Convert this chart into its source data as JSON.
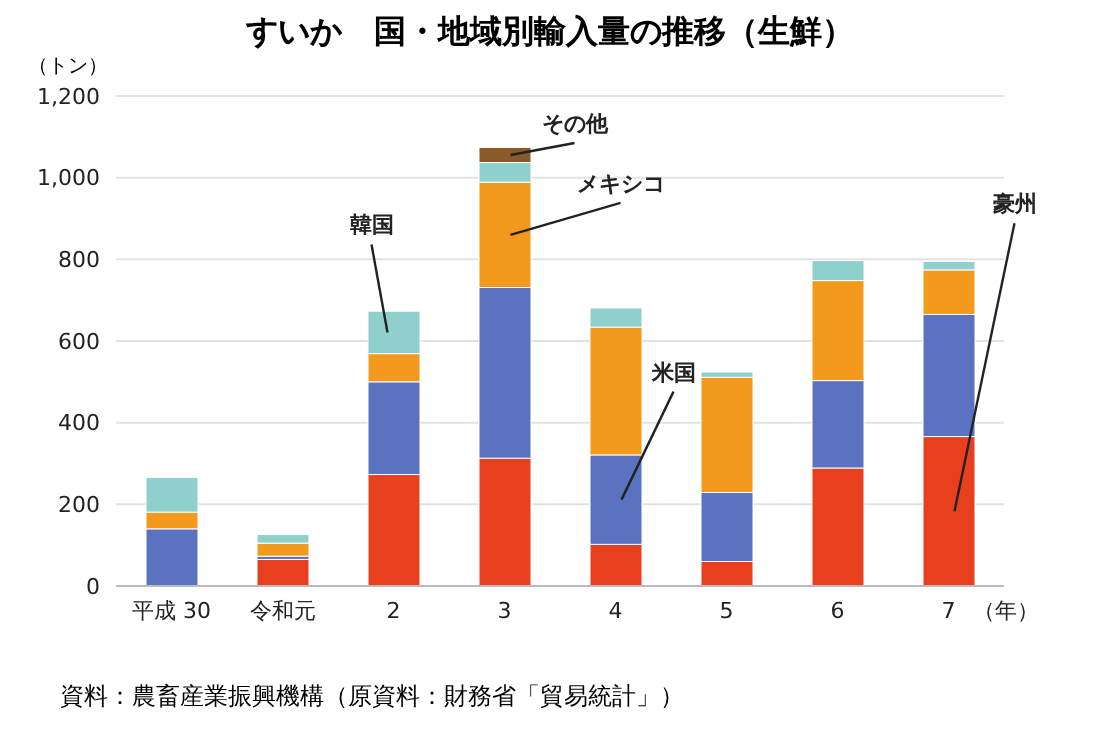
{
  "chart_data": {
    "type": "bar",
    "title": "すいか　国・地域別輸入量の推移（生鮮）",
    "ylabel": "（トン）",
    "xlabel": "（年）",
    "categories": [
      "平成 30",
      "令和元",
      "2",
      "3",
      "4",
      "5",
      "6",
      "7"
    ],
    "stacked": true,
    "series": [
      {
        "name": "豪州",
        "color": "#e8401e",
        "values": [
          0,
          65,
          273,
          313,
          102,
          60,
          289,
          366
        ]
      },
      {
        "name": "米国",
        "color": "#5a72c0",
        "values": [
          140,
          8,
          227,
          418,
          219,
          169,
          214,
          299
        ]
      },
      {
        "name": "メキシコ",
        "color": "#f39a1e",
        "values": [
          41,
          32,
          69,
          258,
          313,
          282,
          245,
          109
        ]
      },
      {
        "name": "韓国",
        "color": "#8fd0cc",
        "values": [
          85,
          21,
          104,
          48,
          47,
          13,
          49,
          21
        ]
      },
      {
        "name": "その他",
        "color": "#8b5a2b",
        "values": [
          0,
          0,
          0,
          37,
          0,
          0,
          0,
          0
        ]
      }
    ],
    "ylim": [
      0,
      1200
    ],
    "yticks": [
      0,
      200,
      400,
      600,
      800,
      {
        "value": 1000,
        "label": "1,000"
      },
      {
        "value": 1200,
        "label": "1,200"
      }
    ],
    "grid": "y",
    "legend": false,
    "annotations": [
      "資料：農畜産業振興機構（原資料：財務省「貿易統計」）"
    ]
  }
}
